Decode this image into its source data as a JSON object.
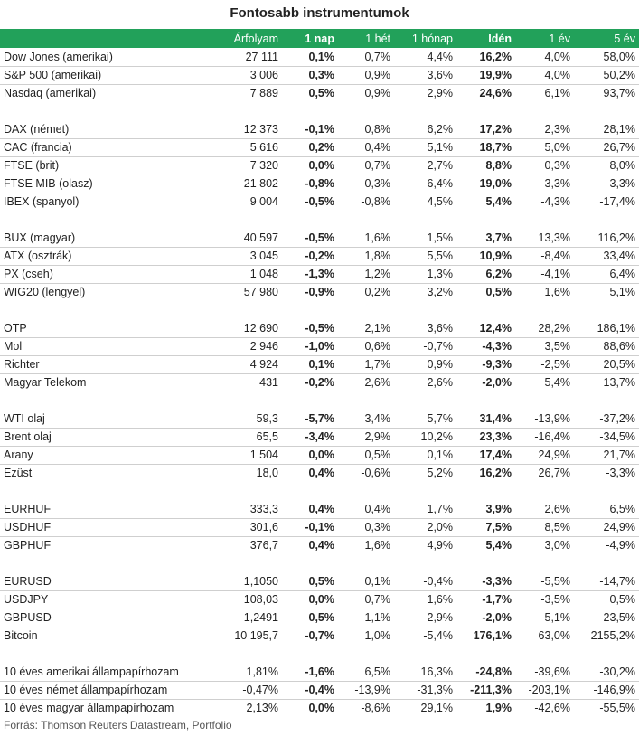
{
  "title": "Fontosabb instrumentumok",
  "headers": [
    "",
    "Árfolyam",
    "1 nap",
    "1 hét",
    "1 hónap",
    "Idén",
    "1 év",
    "5 év"
  ],
  "groups": [
    [
      [
        "Dow Jones (amerikai)",
        "27 111",
        "0,1%",
        "0,7%",
        "4,4%",
        "16,2%",
        "4,0%",
        "58,0%"
      ],
      [
        "S&P 500 (amerikai)",
        "3 006",
        "0,3%",
        "0,9%",
        "3,6%",
        "19,9%",
        "4,0%",
        "50,2%"
      ],
      [
        "Nasdaq (amerikai)",
        "7 889",
        "0,5%",
        "0,9%",
        "2,9%",
        "24,6%",
        "6,1%",
        "93,7%"
      ]
    ],
    [
      [
        "DAX (német)",
        "12 373",
        "-0,1%",
        "0,8%",
        "6,2%",
        "17,2%",
        "2,3%",
        "28,1%"
      ],
      [
        "CAC (francia)",
        "5 616",
        "0,2%",
        "0,4%",
        "5,1%",
        "18,7%",
        "5,0%",
        "26,7%"
      ],
      [
        "FTSE (brit)",
        "7 320",
        "0,0%",
        "0,7%",
        "2,7%",
        "8,8%",
        "0,3%",
        "8,0%"
      ],
      [
        "FTSE MIB (olasz)",
        "21 802",
        "-0,8%",
        "-0,3%",
        "6,4%",
        "19,0%",
        "3,3%",
        "3,3%"
      ],
      [
        "IBEX (spanyol)",
        "9 004",
        "-0,5%",
        "-0,8%",
        "4,5%",
        "5,4%",
        "-4,3%",
        "-17,4%"
      ]
    ],
    [
      [
        "BUX (magyar)",
        "40 597",
        "-0,5%",
        "1,6%",
        "1,5%",
        "3,7%",
        "13,3%",
        "116,2%"
      ],
      [
        "ATX (osztrák)",
        "3 045",
        "-0,2%",
        "1,8%",
        "5,5%",
        "10,9%",
        "-8,4%",
        "33,4%"
      ],
      [
        "PX (cseh)",
        "1 048",
        "-1,3%",
        "1,2%",
        "1,3%",
        "6,2%",
        "-4,1%",
        "6,4%"
      ],
      [
        "WIG20 (lengyel)",
        "57 980",
        "-0,9%",
        "0,2%",
        "3,2%",
        "0,5%",
        "1,6%",
        "5,1%"
      ]
    ],
    [
      [
        "OTP",
        "12 690",
        "-0,5%",
        "2,1%",
        "3,6%",
        "12,4%",
        "28,2%",
        "186,1%"
      ],
      [
        "Mol",
        "2 946",
        "-1,0%",
        "0,6%",
        "-0,7%",
        "-4,3%",
        "3,5%",
        "88,6%"
      ],
      [
        "Richter",
        "4 924",
        "0,1%",
        "1,7%",
        "0,9%",
        "-9,3%",
        "-2,5%",
        "20,5%"
      ],
      [
        "Magyar Telekom",
        "431",
        "-0,2%",
        "2,6%",
        "2,6%",
        "-2,0%",
        "5,4%",
        "13,7%"
      ]
    ],
    [
      [
        "WTI olaj",
        "59,3",
        "-5,7%",
        "3,4%",
        "5,7%",
        "31,4%",
        "-13,9%",
        "-37,2%"
      ],
      [
        "Brent olaj",
        "65,5",
        "-3,4%",
        "2,9%",
        "10,2%",
        "23,3%",
        "-16,4%",
        "-34,5%"
      ],
      [
        "Arany",
        "1 504",
        "0,0%",
        "0,5%",
        "0,1%",
        "17,4%",
        "24,9%",
        "21,7%"
      ],
      [
        "Ezüst",
        "18,0",
        "0,4%",
        "-0,6%",
        "5,2%",
        "16,2%",
        "26,7%",
        "-3,3%"
      ]
    ],
    [
      [
        "EURHUF",
        "333,3",
        "0,4%",
        "0,4%",
        "1,7%",
        "3,9%",
        "2,6%",
        "6,5%"
      ],
      [
        "USDHUF",
        "301,6",
        "-0,1%",
        "0,3%",
        "2,0%",
        "7,5%",
        "8,5%",
        "24,9%"
      ],
      [
        "GBPHUF",
        "376,7",
        "0,4%",
        "1,6%",
        "4,9%",
        "5,4%",
        "3,0%",
        "-4,9%"
      ]
    ],
    [
      [
        "EURUSD",
        "1,1050",
        "0,5%",
        "0,1%",
        "-0,4%",
        "-3,3%",
        "-5,5%",
        "-14,7%"
      ],
      [
        "USDJPY",
        "108,03",
        "0,0%",
        "0,7%",
        "1,6%",
        "-1,7%",
        "-3,5%",
        "0,5%"
      ],
      [
        "GBPUSD",
        "1,2491",
        "0,5%",
        "1,1%",
        "2,9%",
        "-2,0%",
        "-5,1%",
        "-23,5%"
      ],
      [
        "Bitcoin",
        "10 195,7",
        "-0,7%",
        "1,0%",
        "-5,4%",
        "176,1%",
        "63,0%",
        "2155,2%"
      ]
    ],
    [
      [
        "10 éves amerikai állampapírhozam",
        "1,81%",
        "-1,6%",
        "6,5%",
        "16,3%",
        "-24,8%",
        "-39,6%",
        "-30,2%"
      ],
      [
        "10 éves német állampapírhozam",
        "-0,47%",
        "-0,4%",
        "-13,9%",
        "-31,3%",
        "-211,3%",
        "-203,1%",
        "-146,9%"
      ],
      [
        "10 éves magyar állampapírhozam",
        "2,13%",
        "0,0%",
        "-8,6%",
        "29,1%",
        "1,9%",
        "-42,6%",
        "-55,5%"
      ]
    ]
  ],
  "source": "Forrás: Thomson Reuters Datastream, Portfolio",
  "colors": {
    "header_bg": "#22a15a",
    "header_text": "#ffffff",
    "row_border": "#cfcfcf"
  }
}
